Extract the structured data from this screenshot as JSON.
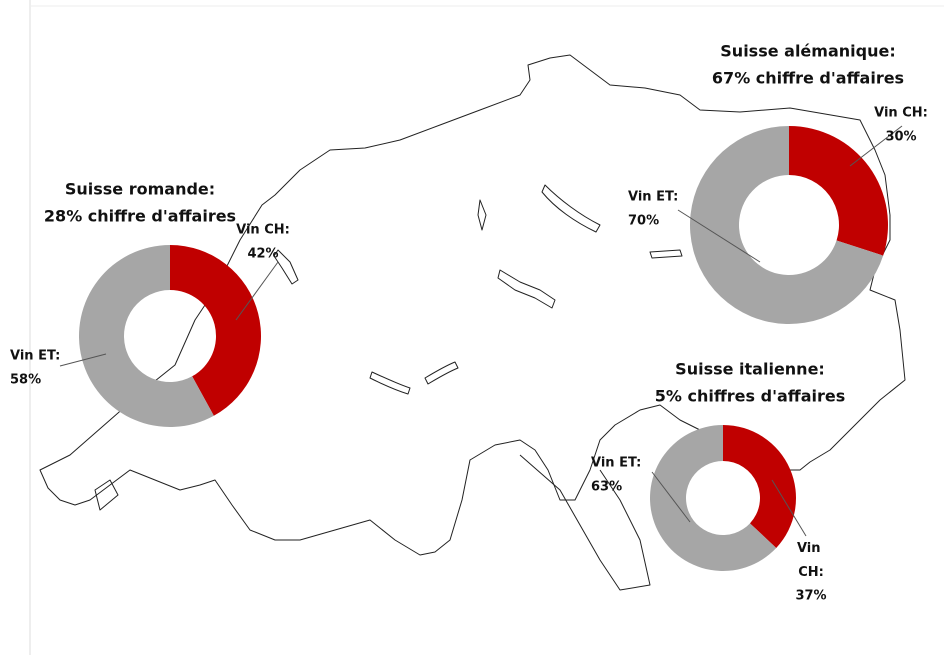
{
  "chart_data": [
    {
      "type": "pie",
      "title": "Suisse romande:",
      "subtitle": "28% chiffre d'affaires",
      "categories": [
        "Vin CH:",
        "Vin ET:"
      ],
      "values": [
        42,
        58
      ],
      "value_labels": [
        "42%",
        "58%"
      ],
      "colors": [
        "#c00000",
        "#a6a6a6"
      ],
      "donut": true
    },
    {
      "type": "pie",
      "title": "Suisse alémanique:",
      "subtitle": "67% chiffre d'affaires",
      "categories": [
        "Vin CH:",
        "Vin ET:"
      ],
      "values": [
        30,
        70
      ],
      "value_labels": [
        "30%",
        "70%"
      ],
      "colors": [
        "#c00000",
        "#a6a6a6"
      ],
      "donut": true
    },
    {
      "type": "pie",
      "title": "Suisse italienne:",
      "subtitle": "5% chiffres d'affaires",
      "categories": [
        "Vin CH:",
        "Vin ET:"
      ],
      "values": [
        37,
        63
      ],
      "value_labels": [
        "37%",
        "63%"
      ],
      "colors": [
        "#c00000",
        "#a6a6a6"
      ],
      "donut": true
    }
  ]
}
